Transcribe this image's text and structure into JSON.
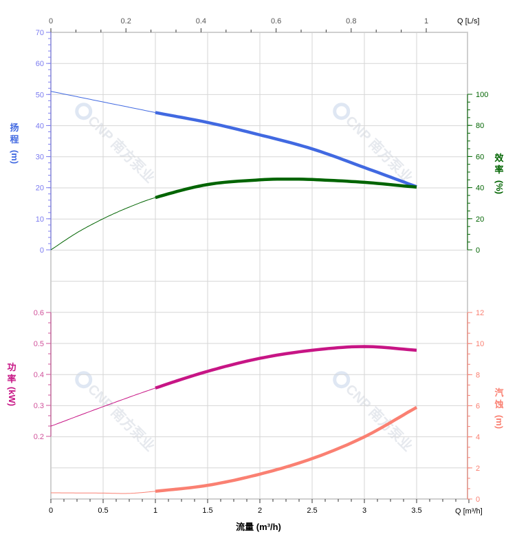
{
  "chart_data": {
    "type": "line",
    "xlabel": "流量 (m³/h)",
    "x_unit_label": "Q [m³/h]",
    "x_top_unit_label": "Q [L/s]",
    "xlim": [
      0,
      4
    ],
    "x_ticks": [
      "0",
      "0.5",
      "1",
      "1.5",
      "2",
      "2.5",
      "3",
      "3.5"
    ],
    "x_top_ticks": [
      "0",
      "0.2",
      "0.4",
      "0.6",
      "0.8",
      "1"
    ],
    "grid": true,
    "operating_range": [
      1,
      3.5
    ],
    "watermark": "CNP 南方泵业",
    "axes": {
      "head": {
        "label_chars": [
          "扬",
          "程"
        ],
        "unit": "(m)",
        "ticks": [
          "0",
          "10",
          "20",
          "30",
          "40",
          "50",
          "60",
          "70"
        ],
        "ylim": [
          0,
          70
        ],
        "side": "left",
        "color": "#4169e1",
        "tick_color": "#7b7bf0"
      },
      "efficiency": {
        "label_chars": [
          "效",
          "率"
        ],
        "unit": "(%)",
        "ticks": [
          "0",
          "20",
          "40",
          "60",
          "80",
          "100"
        ],
        "ylim": [
          0,
          100
        ],
        "side": "right",
        "color": "#006400"
      },
      "power": {
        "label_chars": [
          "功",
          "率"
        ],
        "unit": "(kW)",
        "ticks": [
          "0.2",
          "0.3",
          "0.4",
          "0.5",
          "0.6"
        ],
        "ylim": [
          0.2,
          0.6
        ],
        "side": "left",
        "color": "#c71585",
        "tick_color": "#d0509a"
      },
      "npsh": {
        "label_chars": [
          "汽",
          "蚀"
        ],
        "unit": "(m)",
        "ticks": [
          "0",
          "2",
          "4",
          "6",
          "8",
          "10",
          "12"
        ],
        "ylim": [
          0,
          12
        ],
        "side": "right",
        "color": "#fa8072"
      }
    },
    "series": [
      {
        "axis": "head",
        "x": [
          0,
          0.5,
          1,
          1.5,
          2,
          2.5,
          3,
          3.5
        ],
        "y": [
          51,
          47.6,
          44.2,
          41,
          37,
          32.5,
          26.5,
          20.3
        ]
      },
      {
        "axis": "efficiency",
        "x": [
          0,
          0.25,
          0.5,
          0.75,
          1,
          1.5,
          2,
          2.25,
          2.5,
          3,
          3.5
        ],
        "y": [
          0,
          11,
          20,
          27.5,
          33.6,
          42,
          45,
          45.5,
          45.2,
          43.4,
          40.3
        ]
      },
      {
        "axis": "power",
        "x": [
          0,
          0.5,
          1,
          1.5,
          2,
          2.5,
          3,
          3.5
        ],
        "y": [
          0.233,
          0.296,
          0.356,
          0.41,
          0.452,
          0.478,
          0.49,
          0.478
        ]
      },
      {
        "axis": "npsh",
        "x": [
          0,
          0.5,
          0.75,
          1,
          1.5,
          2,
          2.5,
          3,
          3.5
        ],
        "y": [
          0.4,
          0.38,
          0.36,
          0.5,
          0.88,
          1.6,
          2.6,
          4.0,
          5.9
        ]
      }
    ]
  }
}
